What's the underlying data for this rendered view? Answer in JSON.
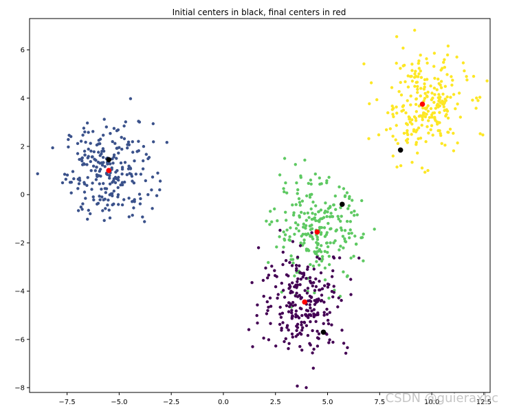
{
  "chart_data": {
    "type": "scatter",
    "title": "Initial centers in black, final centers in red",
    "xlabel": "",
    "ylabel": "",
    "xlim": [
      -9.3,
      12.8
    ],
    "ylim": [
      -8.2,
      7.3
    ],
    "xticks": [
      -7.5,
      -5.0,
      -2.5,
      0.0,
      2.5,
      5.0,
      7.5,
      10.0,
      12.5
    ],
    "xtick_labels": [
      "−7.5",
      "−5.0",
      "−2.5",
      "0.0",
      "2.5",
      "5.0",
      "7.5",
      "10.0",
      "12.5"
    ],
    "yticks": [
      -8,
      -6,
      -4,
      -2,
      0,
      2,
      4,
      6
    ],
    "ytick_labels": [
      "−8",
      "−6",
      "−4",
      "−2",
      "0",
      "2",
      "4",
      "6"
    ],
    "grid": false,
    "legend": "none",
    "clusters": [
      {
        "color": "#3b528b",
        "center": [
          -5.5,
          1.0
        ],
        "spread": [
          1.05,
          1.0
        ],
        "count": 250
      },
      {
        "color": "#fde725",
        "center": [
          9.6,
          3.7
        ],
        "spread": [
          1.05,
          1.05
        ],
        "count": 250
      },
      {
        "color": "#5ec962",
        "center": [
          4.5,
          -1.5
        ],
        "spread": [
          1.05,
          1.05
        ],
        "count": 250
      },
      {
        "color": "#440154",
        "center": [
          3.9,
          -4.45
        ],
        "spread": [
          1.05,
          1.05
        ],
        "count": 250
      }
    ],
    "initial_centers": {
      "color": "#000000",
      "points": [
        [
          -5.5,
          1.45
        ],
        [
          8.5,
          1.85
        ],
        [
          5.7,
          -0.4
        ],
        [
          4.8,
          -5.7
        ]
      ]
    },
    "final_centers": {
      "color": "#ff0000",
      "points": [
        [
          -5.5,
          1.0
        ],
        [
          9.55,
          3.75
        ],
        [
          4.5,
          -1.55
        ],
        [
          3.9,
          -4.45
        ]
      ]
    }
  },
  "watermark": "CSDN @guieraxbc"
}
